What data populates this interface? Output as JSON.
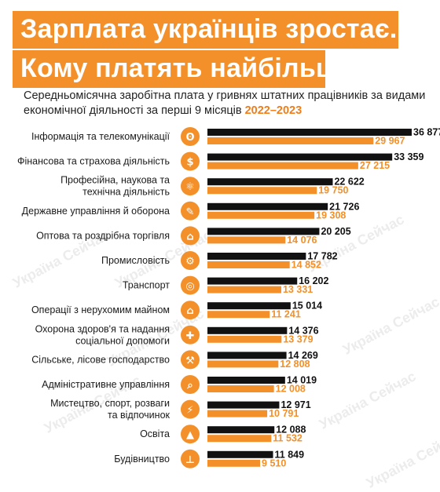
{
  "header": {
    "title_line1": "Зарплата українців зростає.",
    "title_line2": "Кому платять найбільше"
  },
  "subtitle": {
    "text": "Середньомісячна заробітна плата у гривнях штатних працівників за видами економічної діяльності за перші 9 місяців ",
    "years": "2022–2023"
  },
  "watermark": "Україна Сейчас",
  "colors": {
    "accent": "#f3902a",
    "black": "#111111",
    "icon_bg": "#f3902a"
  },
  "chart_data": {
    "type": "bar",
    "orientation": "horizontal",
    "categories": [
      [
        "Інформація та телекомунікації"
      ],
      [
        "Фінансова та страхова діяльність"
      ],
      [
        "Професійна, наукова та",
        "технічна діяльність"
      ],
      [
        "Державне управління й оборона"
      ],
      [
        "Оптова та роздрібна торгівля"
      ],
      [
        "Промисловість"
      ],
      [
        "Транспорт"
      ],
      [
        "Операції з нерухомим майном"
      ],
      [
        "Охорона здоров'я та надання",
        "соціальної допомоги"
      ],
      [
        "Сільське, лісове господарство"
      ],
      [
        "Адміністративне управління"
      ],
      [
        "Мистецтво, спорт, розваги",
        "та відпочинок"
      ],
      [
        "Освіта"
      ],
      [
        "Будівництво"
      ]
    ],
    "icons": [
      "broadcast-icon",
      "coins-icon",
      "atom-icon",
      "pen-icon",
      "store-icon",
      "gear-search-icon",
      "steering-wheel-icon",
      "house-icon",
      "medical-icon",
      "tractor-icon",
      "magnifier-icon",
      "runner-icon",
      "graduation-cap-icon",
      "crane-icon"
    ],
    "series": [
      {
        "name": "2023",
        "color": "#111111",
        "values": [
          36877,
          33359,
          22622,
          21726,
          20205,
          17782,
          16202,
          15014,
          14376,
          14269,
          14019,
          12971,
          12088,
          11849
        ],
        "labels": [
          "36 877",
          "33 359",
          "22 622",
          "21 726",
          "20 205",
          "17 782",
          "16 202",
          "15 014",
          "14 376",
          "14 269",
          "14 019",
          "12 971",
          "12 088",
          "11 849"
        ]
      },
      {
        "name": "2022",
        "color": "#f3902a",
        "values": [
          29967,
          27215,
          19750,
          19308,
          14076,
          14852,
          13331,
          11241,
          13379,
          12808,
          12008,
          10791,
          11532,
          9510
        ],
        "labels": [
          "29 967",
          "27 215",
          "19 750",
          "19 308",
          "14 076",
          "14 852",
          "13 331",
          "11 241",
          "13 379",
          "12 808",
          "12 008",
          "10 791",
          "11 532",
          "9 510"
        ]
      }
    ]
  }
}
